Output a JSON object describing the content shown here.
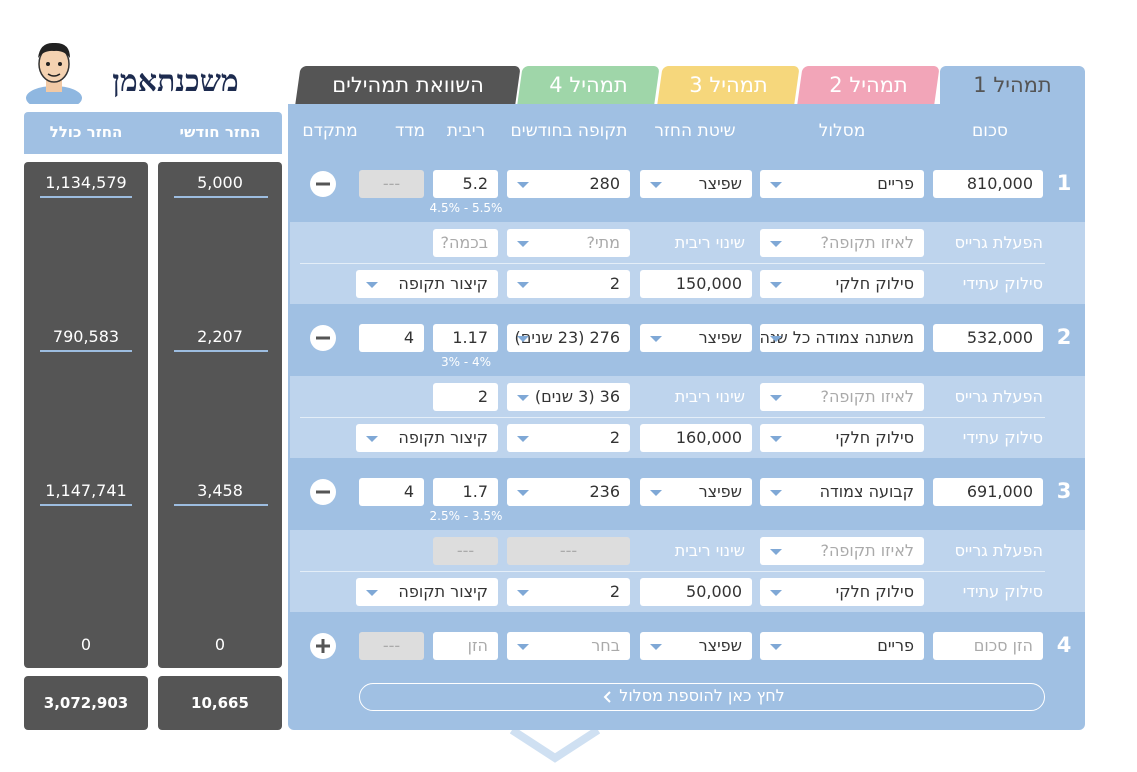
{
  "logo": "משכנתאמן",
  "tabs": [
    "תמהיל 1",
    "תמהיל 2",
    "תמהיל 3",
    "תמהיל 4",
    "השוואת תמהילים"
  ],
  "columns": [
    "סכום",
    "מסלול",
    "שיטת החזר",
    "תקופה בחודשים",
    "ריבית",
    "מדד",
    "מתקדם"
  ],
  "summary_headers": [
    "החזר חודשי",
    "החזר כולל"
  ],
  "tracks": [
    {
      "number": "1",
      "amount": "810,000",
      "route": "פריים",
      "method": "שפיצר",
      "period": "280",
      "rate": "5.2",
      "index": "---",
      "rate_range": "4.5% - 5.5%",
      "grace": {
        "label": "הפעלת גרייס",
        "period": "לאיזו תקופה?",
        "rate_change_label": "שינוי ריבית",
        "when": "מתי?",
        "how_much": "בכמה?"
      },
      "prepayment": {
        "label": "סילוק עתידי",
        "type": "סילוק חלקי",
        "amount": "150,000",
        "when": "2",
        "effect": "קיצור תקופה"
      },
      "monthly": "5,000",
      "total": "1,134,579"
    },
    {
      "number": "2",
      "amount": "532,000",
      "route": "משתנה צמודה כל שנה",
      "method": "שפיצר",
      "period": "276 (23 שנים)",
      "rate": "1.17",
      "index": "4",
      "rate_range": "3% - 4%",
      "grace": {
        "label": "הפעלת גרייס",
        "period": "לאיזו תקופה?",
        "rate_change_label": "שינוי ריבית",
        "when": "36 (3 שנים)",
        "how_much": "2"
      },
      "prepayment": {
        "label": "סילוק עתידי",
        "type": "סילוק חלקי",
        "amount": "160,000",
        "when": "2",
        "effect": "קיצור תקופה"
      },
      "monthly": "2,207",
      "total": "790,583"
    },
    {
      "number": "3",
      "amount": "691,000",
      "route": "קבועה צמודה",
      "method": "שפיצר",
      "period": "236",
      "rate": "1.7",
      "index": "4",
      "rate_range": "2.5% - 3.5%",
      "grace": {
        "label": "הפעלת גרייס",
        "period": "לאיזו תקופה?",
        "rate_change_label": "שינוי ריבית",
        "when": "---",
        "how_much": "---"
      },
      "prepayment": {
        "label": "סילוק עתידי",
        "type": "סילוק חלקי",
        "amount": "50,000",
        "when": "2",
        "effect": "קיצור תקופה"
      },
      "monthly": "3,458",
      "total": "1,147,741"
    },
    {
      "number": "4",
      "amount": "הזן סכום",
      "route": "פריים",
      "method": "שפיצר",
      "period": "בחר",
      "rate": "הזן",
      "index": "---",
      "monthly": "0",
      "total": "0"
    }
  ],
  "monthly_sum": "10,665",
  "total_sum": "3,072,903",
  "add_track": "לחץ כאן להוספת מסלול"
}
